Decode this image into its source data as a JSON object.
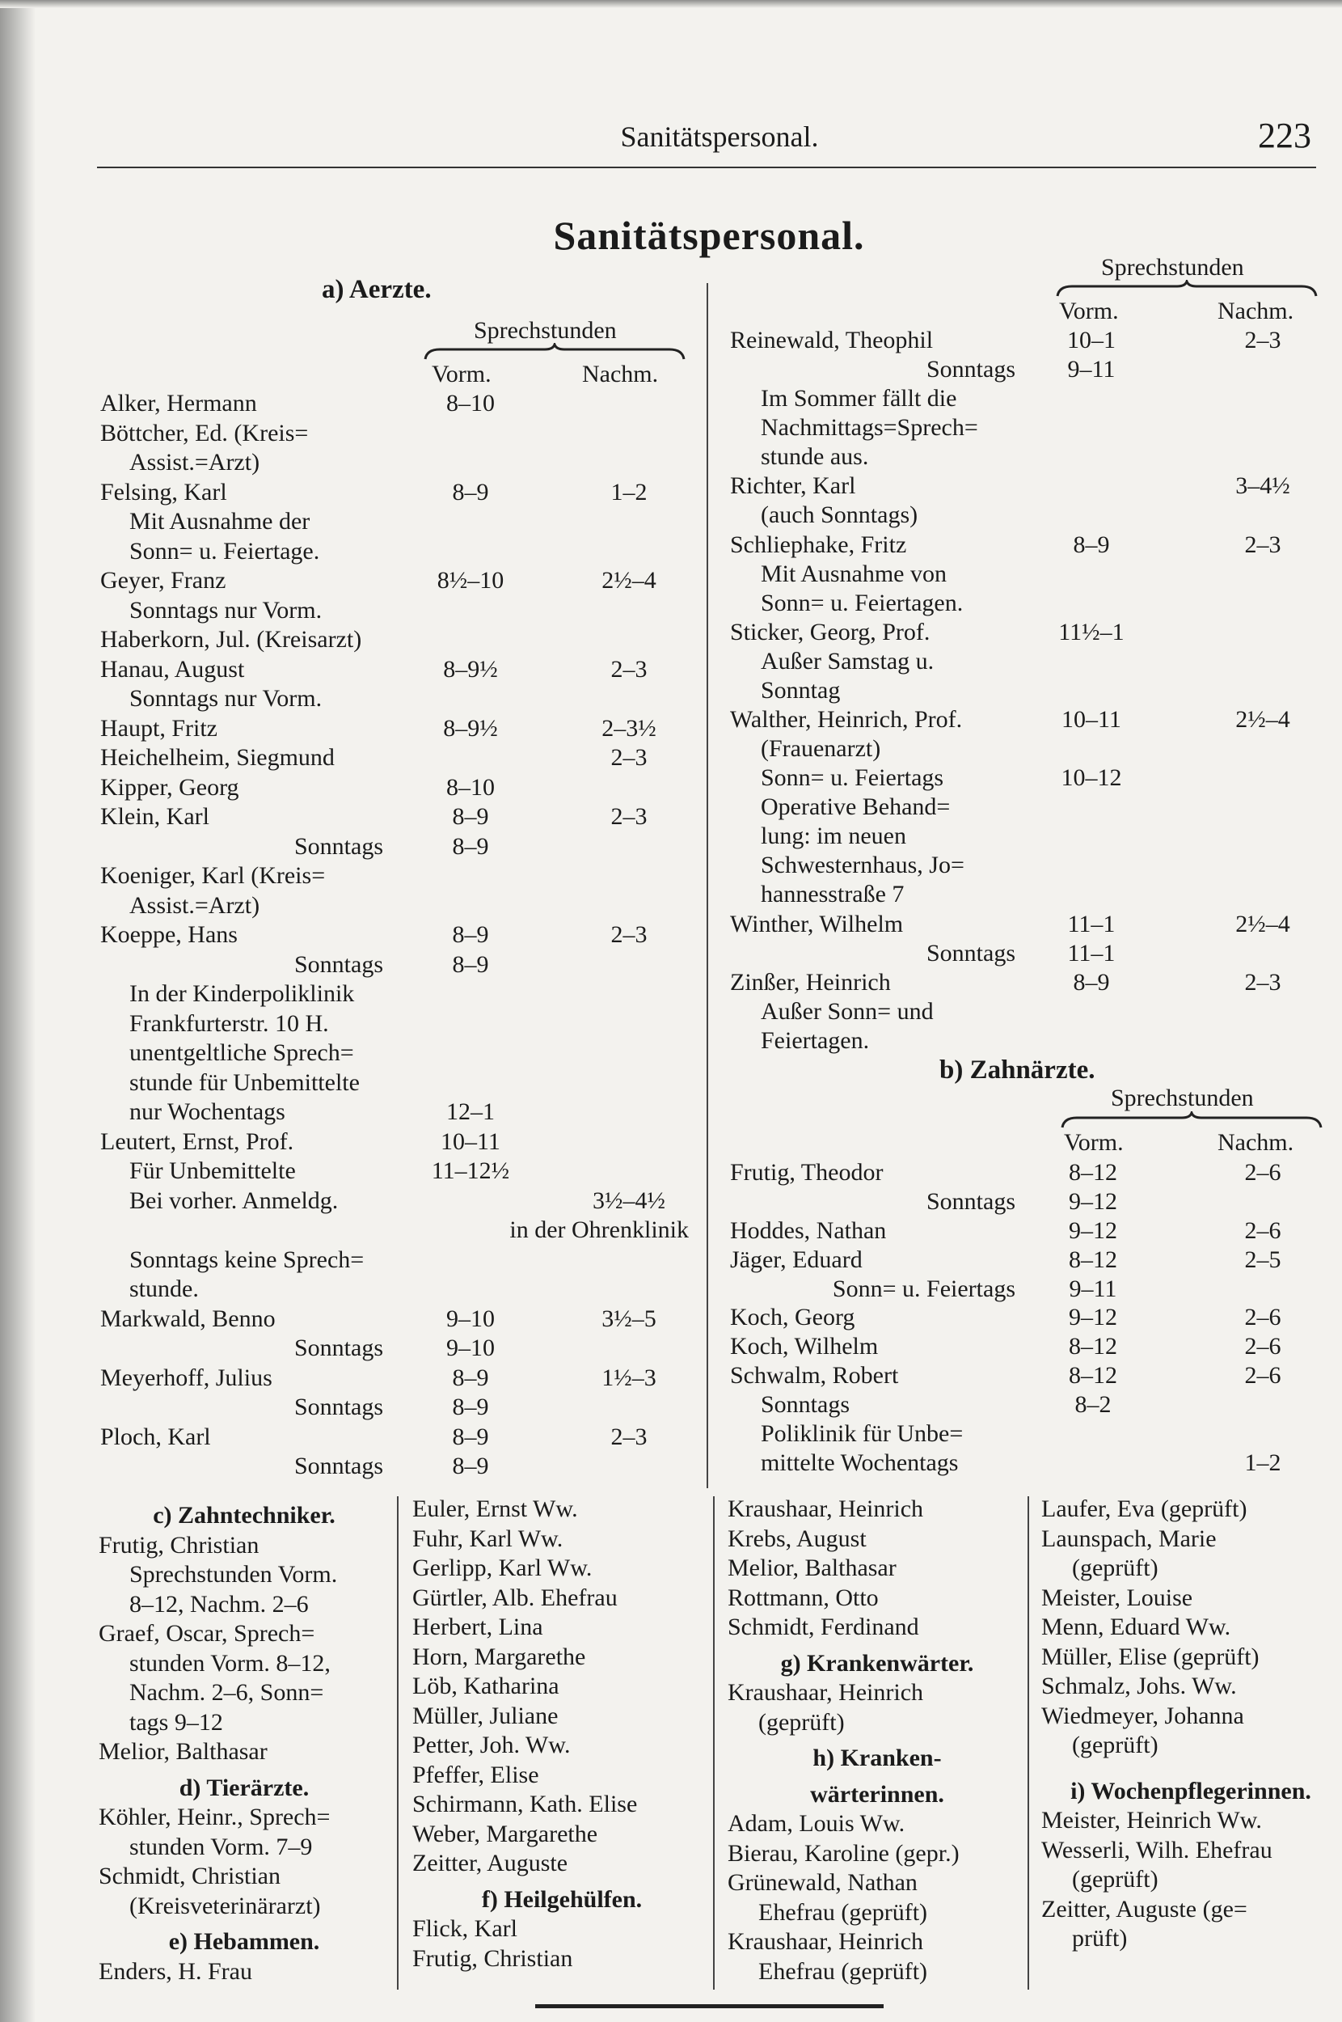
{
  "header": {
    "running_head": "Sanitätspersonal.",
    "page_number": "223"
  },
  "title": "Sanitätspersonal.",
  "aerzte": {
    "heading": "a) Aerzte.",
    "sprechstunden": "Sprechstunden",
    "vorm": "Vorm.",
    "nachm": "Nachm.",
    "rows": [
      {
        "name": "Alker, Hermann",
        "vorm": "8–10",
        "nachm": "",
        "style": ""
      },
      {
        "name": "Böttcher, Ed. (Kreis=",
        "vorm": "",
        "nachm": "",
        "style": ""
      },
      {
        "name": "Assist.=Arzt)",
        "vorm": "",
        "nachm": "",
        "style": "i"
      },
      {
        "name": "Felsing, Karl",
        "vorm": "8–9",
        "nachm": "1–2",
        "style": ""
      },
      {
        "name": "Mit Ausnahme der",
        "vorm": "",
        "nachm": "",
        "style": "i"
      },
      {
        "name": "Sonn= u. Feiertage.",
        "vorm": "",
        "nachm": "",
        "style": "i"
      },
      {
        "name": "Geyer, Franz",
        "vorm": "8½–10",
        "nachm": "2½–4",
        "style": ""
      },
      {
        "name": "Sonntags nur Vorm.",
        "vorm": "",
        "nachm": "",
        "style": "i"
      },
      {
        "name": "Haberkorn, Jul. (Kreisarzt)",
        "vorm": "",
        "nachm": "",
        "style": ""
      },
      {
        "name": "Hanau, August",
        "vorm": "8–9½",
        "nachm": "2–3",
        "style": ""
      },
      {
        "name": "Sonntags nur Vorm.",
        "vorm": "",
        "nachm": "",
        "style": "i"
      },
      {
        "name": "Haupt, Fritz",
        "vorm": "8–9½",
        "nachm": "2–3½",
        "style": ""
      },
      {
        "name": "Heichelheim, Siegmund",
        "vorm": "",
        "nachm": "2–3",
        "style": ""
      },
      {
        "name": "Kipper, Georg",
        "vorm": "8–10",
        "nachm": "",
        "style": ""
      },
      {
        "name": "Klein, Karl",
        "vorm": "8–9",
        "nachm": "2–3",
        "style": ""
      },
      {
        "name": "Sonntags",
        "vorm": "8–9",
        "nachm": "",
        "style": "r"
      },
      {
        "name": "Koeniger, Karl (Kreis=",
        "vorm": "",
        "nachm": "",
        "style": ""
      },
      {
        "name": "Assist.=Arzt)",
        "vorm": "",
        "nachm": "",
        "style": "i"
      },
      {
        "name": "Koeppe, Hans",
        "vorm": "8–9",
        "nachm": "2–3",
        "style": ""
      },
      {
        "name": "Sonntags",
        "vorm": "8–9",
        "nachm": "",
        "style": "r"
      },
      {
        "name": "In der Kinderpoliklinik",
        "vorm": "",
        "nachm": "",
        "style": "i"
      },
      {
        "name": "Frankfurterstr. 10 H.",
        "vorm": "",
        "nachm": "",
        "style": "i"
      },
      {
        "name": "unentgeltliche Sprech=",
        "vorm": "",
        "nachm": "",
        "style": "i"
      },
      {
        "name": "stunde für Unbemittelte",
        "vorm": "",
        "nachm": "",
        "style": "i"
      },
      {
        "name": "nur Wochentags",
        "vorm": "12–1",
        "nachm": "",
        "style": "i"
      },
      {
        "name": "Leutert, Ernst, Prof.",
        "vorm": "10–11",
        "nachm": "",
        "style": ""
      },
      {
        "name": "Für Unbemittelte",
        "vorm": "11–12½",
        "nachm": "",
        "style": "i"
      },
      {
        "name": "Bei vorher. Anmeldg.",
        "vorm": "",
        "nachm": "3½–4½",
        "style": "i"
      },
      {
        "name": "in der Ohrenklinik",
        "vorm": "",
        "nachm": "",
        "style": "w"
      },
      {
        "name": "Sonntags keine Sprech=",
        "vorm": "",
        "nachm": "",
        "style": "i"
      },
      {
        "name": "stunde.",
        "vorm": "",
        "nachm": "",
        "style": "i"
      },
      {
        "name": "Markwald, Benno",
        "vorm": "9–10",
        "nachm": "3½–5",
        "style": ""
      },
      {
        "name": "Sonntags",
        "vorm": "9–10",
        "nachm": "",
        "style": "r"
      },
      {
        "name": "Meyerhoff, Julius",
        "vorm": "8–9",
        "nachm": "1½–3",
        "style": ""
      },
      {
        "name": "Sonntags",
        "vorm": "8–9",
        "nachm": "",
        "style": "r"
      },
      {
        "name": "Ploch, Karl",
        "vorm": "8–9",
        "nachm": "2–3",
        "style": ""
      },
      {
        "name": "Sonntags",
        "vorm": "8–9",
        "nachm": "",
        "style": "r"
      }
    ]
  },
  "aerzte_cont": {
    "sprechstunden": "Sprechstunden",
    "vorm": "Vorm.",
    "nachm": "Nachm.",
    "rows": [
      {
        "name": "Reinewald, Theophil",
        "vorm": "10–1",
        "nachm": "2–3",
        "style": ""
      },
      {
        "name": "Sonntags",
        "vorm": "9–11",
        "nachm": "",
        "style": "r"
      },
      {
        "name": "Im Sommer fällt die",
        "vorm": "",
        "nachm": "",
        "style": "i"
      },
      {
        "name": "Nachmittags=Sprech=",
        "vorm": "",
        "nachm": "",
        "style": "i"
      },
      {
        "name": "stunde aus.",
        "vorm": "",
        "nachm": "",
        "style": "i"
      },
      {
        "name": "Richter, Karl",
        "vorm": "",
        "nachm": "3–4½",
        "style": ""
      },
      {
        "name": "(auch Sonntags)",
        "vorm": "",
        "nachm": "",
        "style": "i"
      },
      {
        "name": "Schliephake, Fritz",
        "vorm": "8–9",
        "nachm": "2–3",
        "style": ""
      },
      {
        "name": "Mit Ausnahme von",
        "vorm": "",
        "nachm": "",
        "style": "i"
      },
      {
        "name": "Sonn= u. Feiertagen.",
        "vorm": "",
        "nachm": "",
        "style": "i"
      },
      {
        "name": "Sticker, Georg, Prof.",
        "vorm": "11½–1",
        "nachm": "",
        "style": ""
      },
      {
        "name": "Außer Samstag u.",
        "vorm": "",
        "nachm": "",
        "style": "i"
      },
      {
        "name": "Sonntag",
        "vorm": "",
        "nachm": "",
        "style": "i"
      },
      {
        "name": "Walther, Heinrich, Prof.",
        "vorm": "10–11",
        "nachm": "2½–4",
        "style": ""
      },
      {
        "name": "(Frauenarzt)",
        "vorm": "",
        "nachm": "",
        "style": "i"
      },
      {
        "name": "Sonn= u. Feiertags",
        "vorm": "10–12",
        "nachm": "",
        "style": "i"
      },
      {
        "name": "Operative Behand=",
        "vorm": "",
        "nachm": "",
        "style": "i"
      },
      {
        "name": "lung: im neuen",
        "vorm": "",
        "nachm": "",
        "style": "i"
      },
      {
        "name": "Schwesternhaus, Jo=",
        "vorm": "",
        "nachm": "",
        "style": "i"
      },
      {
        "name": "hannesstraße 7",
        "vorm": "",
        "nachm": "",
        "style": "i"
      },
      {
        "name": "Winther, Wilhelm",
        "vorm": "11–1",
        "nachm": "2½–4",
        "style": ""
      },
      {
        "name": "Sonntags",
        "vorm": "11–1",
        "nachm": "",
        "style": "r"
      },
      {
        "name": "Zinßer, Heinrich",
        "vorm": "8–9",
        "nachm": "2–3",
        "style": ""
      },
      {
        "name": "Außer Sonn= und",
        "vorm": "",
        "nachm": "",
        "style": "i"
      },
      {
        "name": "Feiertagen.",
        "vorm": "",
        "nachm": "",
        "style": "i"
      }
    ]
  },
  "zahnaerzte": {
    "heading": "b) Zahnärzte.",
    "sprechstunden": "Sprechstunden",
    "vorm": "Vorm.",
    "nachm": "Nachm.",
    "rows": [
      {
        "name": "Frutig, Theodor",
        "vorm": "8–12",
        "nachm": "2–6",
        "style": ""
      },
      {
        "name": "Sonntags",
        "vorm": "9–12",
        "nachm": "",
        "style": "r"
      },
      {
        "name": "Hoddes, Nathan",
        "vorm": "9–12",
        "nachm": "2–6",
        "style": ""
      },
      {
        "name": "Jäger, Eduard",
        "vorm": "8–12",
        "nachm": "2–5",
        "style": ""
      },
      {
        "name": "Sonn= u. Feiertags",
        "vorm": "9–11",
        "nachm": "",
        "style": "r"
      },
      {
        "name": "Koch, Georg",
        "vorm": "9–12",
        "nachm": "2–6",
        "style": ""
      },
      {
        "name": "Koch, Wilhelm",
        "vorm": "8–12",
        "nachm": "2–6",
        "style": ""
      },
      {
        "name": "Schwalm, Robert",
        "vorm": "8–12",
        "nachm": "2–6",
        "style": ""
      },
      {
        "name": "Sonntags",
        "vorm": "8–2",
        "nachm": "",
        "style": "i"
      },
      {
        "name": "Poliklinik für Unbe=",
        "vorm": "",
        "nachm": "",
        "style": "i"
      },
      {
        "name": "mittelte Wochentags",
        "vorm": "",
        "nachm": "1–2",
        "style": "i"
      }
    ]
  },
  "bottom_columns": [
    [
      {
        "text": "c) Zahntechniker.",
        "style": "h"
      },
      {
        "text": "Frutig, Christian",
        "style": ""
      },
      {
        "text": "Sprechstunden Vorm.",
        "style": "i"
      },
      {
        "text": "8–12, Nachm. 2–6",
        "style": "i"
      },
      {
        "text": "Graef, Oscar, Sprech=",
        "style": ""
      },
      {
        "text": "stunden Vorm. 8–12,",
        "style": "i"
      },
      {
        "text": "Nachm. 2–6, Sonn=",
        "style": "i"
      },
      {
        "text": "tags 9–12",
        "style": "i"
      },
      {
        "text": "Melior, Balthasar",
        "style": ""
      },
      {
        "text": "d) Tierärzte.",
        "style": "h"
      },
      {
        "text": "Köhler, Heinr., Sprech=",
        "style": ""
      },
      {
        "text": "stunden Vorm. 7–9",
        "style": "i"
      },
      {
        "text": "Schmidt, Christian",
        "style": ""
      },
      {
        "text": "(Kreisveterinärarzt)",
        "style": "i"
      },
      {
        "text": "e) Hebammen.",
        "style": "h"
      },
      {
        "text": "Enders, H. Frau",
        "style": ""
      }
    ],
    [
      {
        "text": "Euler, Ernst Ww.",
        "style": ""
      },
      {
        "text": "Fuhr, Karl Ww.",
        "style": ""
      },
      {
        "text": "Gerlipp, Karl Ww.",
        "style": ""
      },
      {
        "text": "Gürtler, Alb. Ehefrau",
        "style": ""
      },
      {
        "text": "Herbert, Lina",
        "style": ""
      },
      {
        "text": "Horn, Margarethe",
        "style": ""
      },
      {
        "text": "Löb, Katharina",
        "style": ""
      },
      {
        "text": "Müller, Juliane",
        "style": ""
      },
      {
        "text": "Petter, Joh. Ww.",
        "style": ""
      },
      {
        "text": "Pfeffer, Elise",
        "style": ""
      },
      {
        "text": "Schirmann, Kath. Elise",
        "style": ""
      },
      {
        "text": "Weber, Margarethe",
        "style": ""
      },
      {
        "text": "Zeitter, Auguste",
        "style": ""
      },
      {
        "text": "f) Heilgehülfen.",
        "style": "h"
      },
      {
        "text": "Flick, Karl",
        "style": ""
      },
      {
        "text": "Frutig, Christian",
        "style": ""
      }
    ],
    [
      {
        "text": "Kraushaar, Heinrich",
        "style": ""
      },
      {
        "text": "Krebs, August",
        "style": ""
      },
      {
        "text": "Melior, Balthasar",
        "style": ""
      },
      {
        "text": "Rottmann, Otto",
        "style": ""
      },
      {
        "text": "Schmidt, Ferdinand",
        "style": ""
      },
      {
        "text": "g) Krankenwärter.",
        "style": "h"
      },
      {
        "text": "Kraushaar, Heinrich",
        "style": ""
      },
      {
        "text": "(geprüft)",
        "style": "i"
      },
      {
        "text": "h) Kranken-",
        "style": "h"
      },
      {
        "text": "wärterinnen.",
        "style": "h"
      },
      {
        "text": "Adam, Louis Ww.",
        "style": ""
      },
      {
        "text": "Bierau, Karoline (gepr.)",
        "style": ""
      },
      {
        "text": "Grünewald, Nathan",
        "style": ""
      },
      {
        "text": "Ehefrau (geprüft)",
        "style": "i"
      },
      {
        "text": "Kraushaar, Heinrich",
        "style": ""
      },
      {
        "text": "Ehefrau (geprüft)",
        "style": "i"
      }
    ],
    [
      {
        "text": "Laufer, Eva (geprüft)",
        "style": ""
      },
      {
        "text": "Launspach, Marie",
        "style": ""
      },
      {
        "text": "(geprüft)",
        "style": "i"
      },
      {
        "text": "Meister, Louise",
        "style": ""
      },
      {
        "text": "Menn, Eduard Ww.",
        "style": ""
      },
      {
        "text": "Müller, Elise (geprüft)",
        "style": ""
      },
      {
        "text": "Schmalz, Johs. Ww.",
        "style": ""
      },
      {
        "text": "Wiedmeyer, Johanna",
        "style": ""
      },
      {
        "text": "(geprüft)",
        "style": "i"
      },
      {
        "text": "",
        "style": "gap"
      },
      {
        "text": "i) Wochenpflegerinnen.",
        "style": "h"
      },
      {
        "text": "Meister, Heinrich Ww.",
        "style": ""
      },
      {
        "text": "Wesserli, Wilh. Ehefrau",
        "style": ""
      },
      {
        "text": "(geprüft)",
        "style": "i"
      },
      {
        "text": "Zeitter, Auguste (ge=",
        "style": ""
      },
      {
        "text": "prüft)",
        "style": "i"
      }
    ]
  ]
}
